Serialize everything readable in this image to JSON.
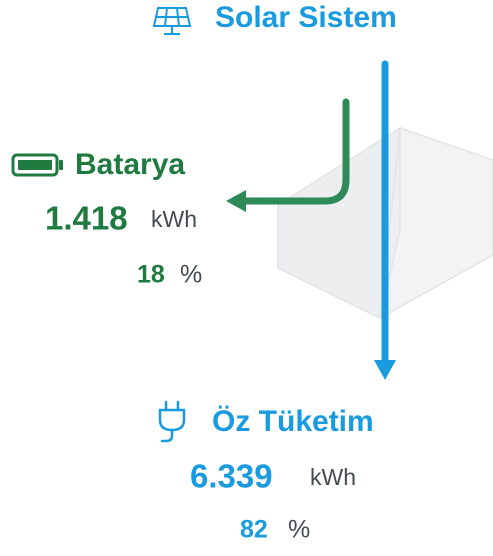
{
  "header": {
    "title": "Solar Sistem"
  },
  "battery": {
    "label": "Batarya",
    "value": "1.418",
    "unit": "kWh",
    "percent": "18",
    "percent_unit": "%"
  },
  "self_consumption": {
    "label": "Öz Tüketim",
    "value": "6.339",
    "unit": "kWh",
    "percent": "82",
    "percent_unit": "%"
  }
}
